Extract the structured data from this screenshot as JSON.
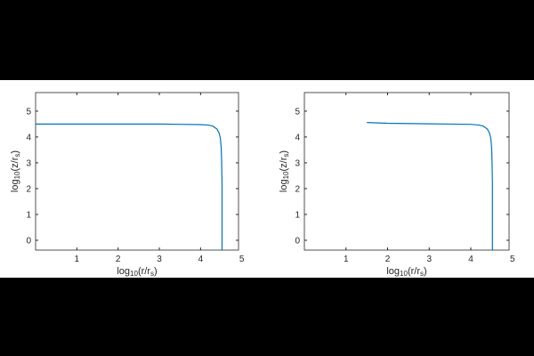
{
  "chart_data": [
    {
      "type": "line",
      "xlabel": [
        "log",
        "10",
        "(r/r",
        "s",
        ")"
      ],
      "ylabel": [
        "log",
        "10",
        "(z/r",
        "s",
        ")"
      ],
      "xlim": [
        0,
        4.92
      ],
      "ylim": [
        -0.38,
        5.72
      ],
      "xticks": [
        1,
        2,
        3,
        4,
        5
      ],
      "yticks": [
        0,
        1,
        2,
        3,
        4,
        5
      ],
      "series": [
        {
          "color": "#0072bd",
          "x": [
            0,
            1,
            2,
            3,
            3.5,
            4,
            4.2,
            4.3,
            4.4,
            4.45,
            4.48,
            4.5,
            4.51,
            4.52,
            4.52,
            4.52
          ],
          "values": [
            4.5,
            4.5,
            4.5,
            4.5,
            4.49,
            4.48,
            4.46,
            4.42,
            4.3,
            4.15,
            3.95,
            3.6,
            3.1,
            2.2,
            0.5,
            -0.38
          ]
        }
      ]
    },
    {
      "type": "line",
      "xlabel": [
        "log",
        "10",
        "(r/r",
        "s",
        ")"
      ],
      "ylabel": [
        "log",
        "10",
        "(z/r",
        "s",
        ")"
      ],
      "xlim": [
        0,
        4.92
      ],
      "ylim": [
        -0.38,
        5.72
      ],
      "xticks": [
        1,
        2,
        3,
        4,
        5
      ],
      "yticks": [
        0,
        1,
        2,
        3,
        4,
        5
      ],
      "series": [
        {
          "color": "#0072bd",
          "x": [
            1.5,
            2,
            3,
            4,
            4.2,
            4.3,
            4.4,
            4.45,
            4.48,
            4.5,
            4.51,
            4.52,
            4.52,
            4.52
          ],
          "values": [
            4.56,
            4.53,
            4.51,
            4.49,
            4.46,
            4.42,
            4.3,
            4.15,
            3.95,
            3.6,
            3.1,
            2.2,
            0.5,
            -0.38
          ]
        }
      ]
    }
  ]
}
